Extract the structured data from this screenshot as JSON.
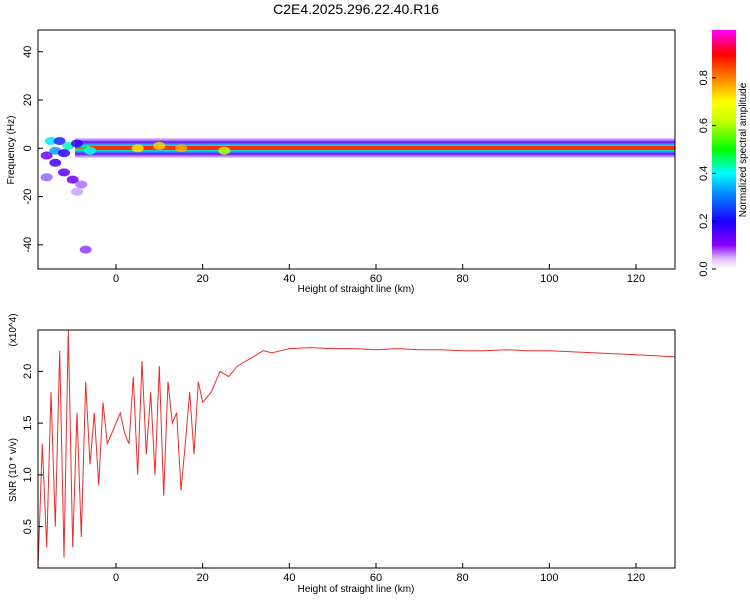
{
  "title": "C2E4.2025.296.22.40.R16",
  "colors": {
    "snr_line": "#ee2b2b",
    "frame": "#000000",
    "background": "#ffffff"
  },
  "chart_data": [
    {
      "type": "heatmap",
      "title": "C2E4.2025.296.22.40.R16",
      "xlabel": "Height of straight line (km)",
      "ylabel": "Frequency (Hz)",
      "xlim": [
        -18,
        129
      ],
      "ylim": [
        -50,
        49
      ],
      "x_ticks": [
        "0",
        "20",
        "40",
        "60",
        "80",
        "100",
        "120"
      ],
      "y_ticks": [
        "40",
        "20",
        "0",
        "-20",
        "-40"
      ],
      "colorbar": {
        "label": "Normalized spectral amplitude",
        "range": [
          0.0,
          1.0
        ],
        "ticks": [
          "0.0",
          "0.2",
          "0.4",
          "0.6",
          "0.8"
        ],
        "colormap": "rainbow (magenta-blue-cyan-green-yellow-red)"
      },
      "features": [
        {
          "name": "main band",
          "x_range": [
            -14,
            129
          ],
          "center_hz": 0,
          "amplitude": "high (red-yellow) near 0 Hz"
        },
        {
          "name": "low-altitude scatter",
          "x_range": [
            -18,
            -7
          ],
          "frequency_range_hz": [
            -43,
            5
          ],
          "amplitude": "low-medium (blue-magenta)"
        }
      ]
    },
    {
      "type": "line",
      "xlabel": "Height of straight line (km)",
      "ylabel": "SNR (10 * v/v)",
      "y_multiplier": "(x10^4)",
      "xlim": [
        -18,
        129
      ],
      "ylim": [
        0.1,
        2.4
      ],
      "x_ticks": [
        "0",
        "20",
        "40",
        "60",
        "80",
        "100",
        "120"
      ],
      "y_ticks": [
        "0.5",
        "1.0",
        "1.5",
        "2.0"
      ],
      "series": [
        {
          "x": [
            -18,
            -17,
            -16,
            -15,
            -14,
            -13,
            -12,
            -11,
            -10,
            -9,
            -8,
            -7,
            -6,
            -5,
            -4,
            -3,
            -2,
            -1,
            0,
            1,
            2,
            3,
            4,
            5,
            6,
            7,
            8,
            9,
            10,
            11,
            12,
            13,
            14,
            15,
            16,
            17,
            18,
            19,
            20,
            22,
            24,
            26,
            28,
            30,
            32,
            34,
            36,
            38,
            40,
            45,
            50,
            55,
            60,
            65,
            70,
            75,
            80,
            85,
            90,
            95,
            100,
            105,
            110,
            115,
            120,
            125,
            129
          ],
          "values": [
            0.1,
            1.3,
            0.3,
            1.8,
            0.5,
            2.2,
            0.2,
            2.4,
            0.3,
            1.6,
            0.4,
            1.9,
            1.1,
            1.6,
            0.9,
            1.7,
            1.3,
            1.4,
            1.5,
            1.6,
            1.4,
            1.3,
            1.95,
            1.0,
            2.1,
            1.2,
            1.8,
            1.0,
            2.05,
            0.8,
            1.9,
            1.5,
            1.6,
            0.85,
            1.3,
            1.8,
            1.2,
            1.9,
            1.7,
            1.8,
            2.0,
            1.95,
            2.05,
            2.1,
            2.15,
            2.2,
            2.18,
            2.2,
            2.22,
            2.23,
            2.22,
            2.22,
            2.21,
            2.22,
            2.21,
            2.21,
            2.2,
            2.2,
            2.21,
            2.2,
            2.2,
            2.19,
            2.18,
            2.17,
            2.16,
            2.15,
            2.14
          ]
        }
      ]
    }
  ]
}
